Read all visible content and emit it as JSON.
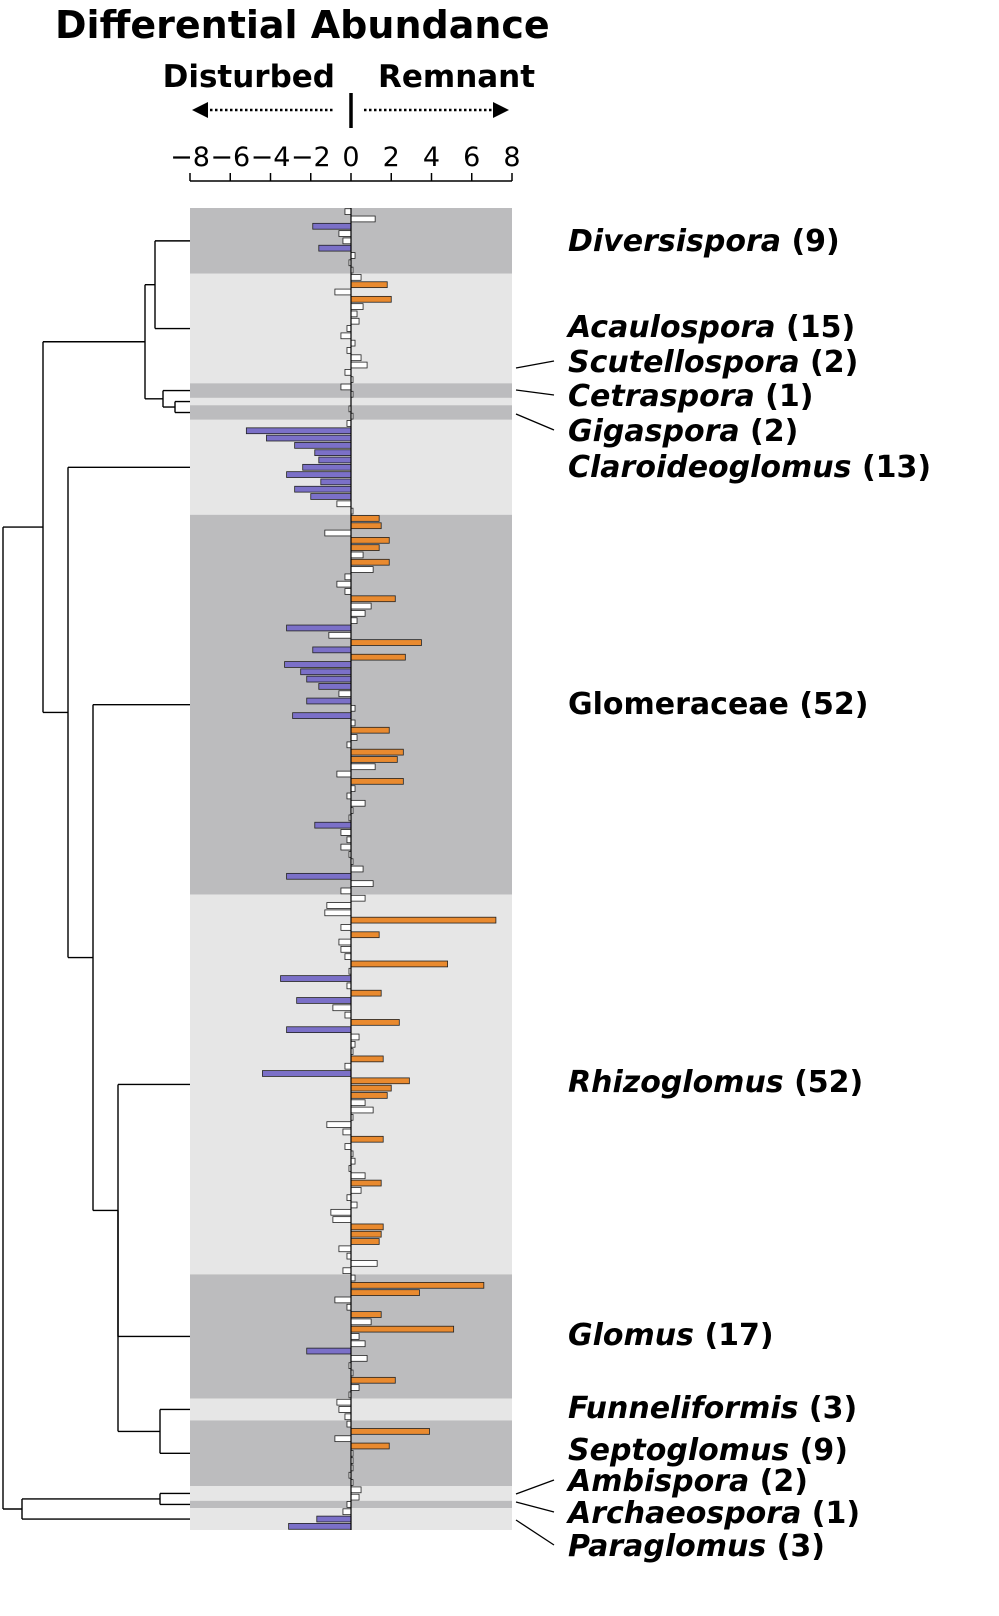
{
  "chart_data": {
    "type": "bar",
    "orientation": "horizontal",
    "title": "Differential Abundance",
    "direction_left": "Disturbed",
    "direction_right": "Remnant",
    "xlim": [
      -8,
      8
    ],
    "x_ticks": [
      -8,
      -6,
      -4,
      -2,
      0,
      2,
      4,
      6,
      8
    ],
    "colors": {
      "disturbed": "#7b70c8",
      "remnant": "#e98a2f",
      "nonsignificant": "#ffffff",
      "band_dark": "#bcbcbe",
      "band_light": "#e6e6e6",
      "bar_outline": "#222222"
    },
    "groups": [
      {
        "name": "Diversispora",
        "count": "(9)",
        "italic": true,
        "shade": "dark",
        "values": [
          -0.3,
          1.2,
          -1.9,
          -0.6,
          -0.4,
          -1.6,
          0.2,
          -0.1,
          0.1
        ]
      },
      {
        "name": "Acaulospora",
        "count": "(15)",
        "italic": true,
        "shade": "light",
        "values": [
          0.5,
          1.8,
          -0.8,
          2.0,
          0.6,
          0.3,
          0.4,
          -0.2,
          -0.5,
          0.2,
          -0.2,
          0.5,
          0.8,
          -0.3,
          0.1
        ]
      },
      {
        "name": "Scutellospora",
        "count": "(2)",
        "italic": true,
        "shade": "dark",
        "values": [
          -0.5,
          0.1
        ]
      },
      {
        "name": "Cetraspora",
        "count": "(1)",
        "italic": true,
        "shade": "light",
        "values": [
          0.0
        ]
      },
      {
        "name": "Gigaspora",
        "count": "(2)",
        "italic": true,
        "shade": "dark",
        "values": [
          -0.1,
          0.1
        ]
      },
      {
        "name": "Claroideoglomus",
        "count": "(13)",
        "italic": true,
        "shade": "light",
        "values": [
          -0.2,
          -5.2,
          -4.2,
          -2.8,
          -1.8,
          -1.6,
          -2.4,
          -3.2,
          -1.5,
          -2.8,
          -2.0,
          -0.7,
          0.1
        ]
      },
      {
        "name": "Glomeraceae",
        "count": "(52)",
        "italic": false,
        "shade": "dark",
        "values": [
          1.4,
          1.5,
          -1.3,
          1.9,
          1.4,
          0.6,
          1.9,
          1.1,
          -0.3,
          -0.7,
          -0.3,
          2.2,
          1.0,
          0.7,
          0.3,
          -3.2,
          -1.1,
          3.5,
          -1.9,
          2.7,
          -3.3,
          -2.5,
          -2.2,
          -1.6,
          -0.6,
          -2.2,
          0.2,
          -2.9,
          0.2,
          1.9,
          0.3,
          -0.2,
          2.6,
          2.3,
          1.2,
          -0.7,
          2.6,
          0.2,
          -0.2,
          0.7,
          0.1,
          -0.1,
          -1.8,
          -0.5,
          -0.2,
          -0.5,
          -0.1,
          0.1,
          0.6,
          -3.2,
          1.1,
          -0.5
        ]
      },
      {
        "name": "Rhizoglomus",
        "count": "(52)",
        "italic": true,
        "shade": "light",
        "values": [
          0.7,
          -1.2,
          -1.3,
          7.2,
          -0.5,
          1.4,
          -0.6,
          -0.5,
          -0.3,
          4.8,
          -0.1,
          -3.5,
          -0.2,
          1.5,
          -2.7,
          -0.9,
          -0.3,
          2.4,
          -3.2,
          0.4,
          0.2,
          0.1,
          1.6,
          -0.3,
          -4.4,
          2.9,
          2.0,
          1.8,
          0.7,
          1.1,
          0.1,
          -1.2,
          -0.4,
          1.6,
          -0.3,
          0.1,
          0.2,
          -0.1,
          0.7,
          1.5,
          0.5,
          -0.2,
          0.3,
          -1.0,
          -0.9,
          1.6,
          1.5,
          1.4,
          -0.6,
          -0.2,
          1.3,
          -0.4
        ]
      },
      {
        "name": "Glomus",
        "count": "(17)",
        "italic": true,
        "shade": "dark",
        "values": [
          0.2,
          6.6,
          3.4,
          -0.8,
          -0.2,
          1.5,
          1.0,
          5.1,
          0.4,
          0.7,
          -2.2,
          0.8,
          -0.1,
          0.1,
          2.2,
          0.4,
          -0.1
        ]
      },
      {
        "name": "Funneliformis",
        "count": "(3)",
        "italic": true,
        "shade": "light",
        "values": [
          -0.7,
          -0.6,
          -0.3
        ]
      },
      {
        "name": "Septoglomus",
        "count": "(9)",
        "italic": true,
        "shade": "dark",
        "values": [
          -0.2,
          3.9,
          -0.8,
          1.9,
          0.1,
          0.1,
          0.1,
          -0.1,
          0.1
        ]
      },
      {
        "name": "Ambispora",
        "count": "(2)",
        "italic": true,
        "shade": "light",
        "values": [
          0.5,
          0.4
        ]
      },
      {
        "name": "Archaeospora",
        "count": "(1)",
        "italic": true,
        "shade": "dark",
        "values": [
          -0.2
        ]
      },
      {
        "name": "Paraglomus",
        "count": "(3)",
        "italic": true,
        "shade": "light",
        "values": [
          -0.4,
          -1.7,
          -3.1
        ]
      }
    ]
  }
}
